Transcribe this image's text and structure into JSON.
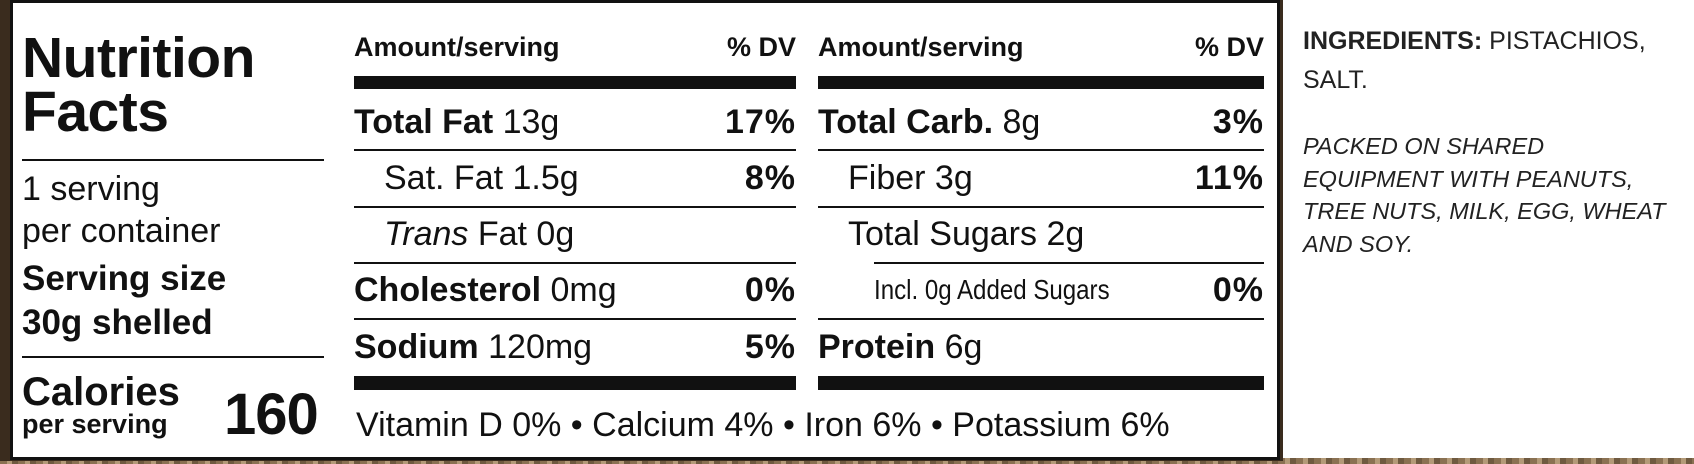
{
  "label": {
    "title_lines": [
      "Nutrition",
      "Facts"
    ],
    "servings_lines": [
      "1 serving",
      "per container"
    ],
    "serving_size_lines": [
      "Serving size",
      "30g shelled"
    ],
    "calories_label": "Calories",
    "calories_sub": "per serving",
    "calories": 160,
    "columns": [
      {
        "header_amount": "Amount/serving",
        "header_dv": "% DV",
        "rows": [
          {
            "name": "Total Fat",
            "amount": "13g",
            "dv": "17%",
            "bold": true,
            "indent": 0
          },
          {
            "name": "Sat. Fat",
            "amount": "1.5g",
            "dv": "8%",
            "bold": false,
            "indent": 1
          },
          {
            "prefix": "Trans",
            "name": "Fat",
            "amount": "0g",
            "bold": false,
            "indent": 1
          },
          {
            "name": "Cholesterol",
            "amount": "0mg",
            "dv": "0%",
            "bold": true,
            "indent": 0
          },
          {
            "name": "Sodium",
            "amount": "120mg",
            "dv": "5%",
            "bold": true,
            "indent": 0
          }
        ]
      },
      {
        "header_amount": "Amount/serving",
        "header_dv": "% DV",
        "rows": [
          {
            "name": "Total Carb.",
            "amount": "8g",
            "dv": "3%",
            "bold": true,
            "indent": 0
          },
          {
            "name": "Fiber",
            "amount": "3g",
            "dv": "11%",
            "bold": false,
            "indent": 1
          },
          {
            "name": "Total Sugars",
            "amount": "2g",
            "bold": false,
            "indent": 1
          },
          {
            "name": "Incl. 0g Added Sugars",
            "dv": "0%",
            "bold": false,
            "indent": 2
          },
          {
            "name": "Protein",
            "amount": "6g",
            "bold": true,
            "indent": 0
          }
        ]
      }
    ],
    "vitamins": "Vitamin D 0% • Calcium 4% • Iron 6% • Potassium 6%"
  },
  "ingredients": {
    "label": "INGREDIENTS:",
    "text": "PISTACHIOS, SALT.",
    "allergen": "PACKED ON SHARED EQUIPMENT WITH PEANUTS, TREE NUTS, MILK, EGG, WHEAT AND SOY."
  }
}
